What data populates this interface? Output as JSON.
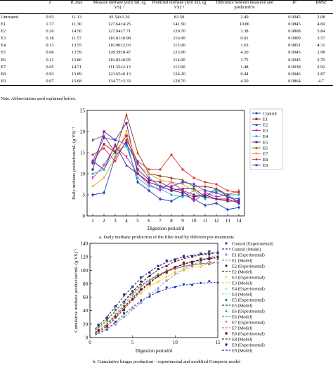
{
  "table": {
    "headers": [
      "",
      "λ",
      "R_max",
      "Measure methane yield /mL·(g VS)⁻¹",
      "Predicted methane yield /mL·(g VS)⁻¹",
      "Difference between measured and predicted/%",
      "R²",
      "RMSE"
    ],
    "rows": [
      [
        "Untreated",
        "0.93",
        "11.13",
        "81.54±1.26",
        "83.50",
        "2.40",
        "0.9945",
        "2.08"
      ],
      [
        "E1",
        "1.37",
        "11.30",
        "127.64±4.25",
        "141.50",
        "10.86",
        "0.9845",
        "4.69"
      ],
      [
        "E2",
        "0.26",
        "14.56",
        "127.94±7.71",
        "129.70",
        "1.38",
        "0.9808",
        "5.84"
      ],
      [
        "E3",
        "0.18",
        "11.57",
        "116.01±0.98",
        "116.00",
        "0.01",
        "0.9909",
        "3.57"
      ],
      [
        "E4",
        "0.13",
        "13.55",
        "116.90±2.03",
        "115.00",
        "1.63",
        "0.9851",
        "4.31"
      ],
      [
        "E5",
        "0.66",
        "13.59",
        "128.39±8.47",
        "123.00",
        "4.20",
        "0.9945",
        "2.98"
      ],
      [
        "E6",
        "0.11",
        "13.86",
        "116.03±0.95",
        "114.00",
        "1.75",
        "0.9945",
        "2.70"
      ],
      [
        "E7",
        "0.65",
        "14.71",
        "111.35±2.13",
        "113.00",
        "1.48",
        "0.9938",
        "2.92"
      ],
      [
        "E8",
        "0.93",
        "13.89",
        "123.65±0.13",
        "124.20",
        "0.44",
        "0.9946",
        "2.87"
      ],
      [
        "E9",
        "0.07",
        "15.68",
        "134.77±3.33",
        "128.70",
        "4.50",
        "0.9864",
        "4.7"
      ]
    ],
    "note": "Note: Abbreviations used explained before."
  },
  "chart_data": [
    {
      "type": "line",
      "xlabel": "Digestion period/d",
      "ylabel": "Daily methane production/mL·(g VS)⁻¹",
      "caption": "a. Daily methane production of the filter mud by different pre-treatments",
      "xlim": [
        0.5,
        14.5
      ],
      "ylim": [
        0,
        25
      ],
      "xticks": [
        "1",
        "2",
        "3",
        "4",
        "5",
        "6",
        "7",
        "8",
        "9",
        "10",
        "11",
        "12",
        "13",
        "14"
      ],
      "yticks": [
        "0",
        "5",
        "10",
        "15",
        "20",
        "25"
      ],
      "legend_position": "right",
      "x": [
        1,
        2,
        3,
        4,
        5,
        6,
        7,
        8,
        9,
        10,
        11,
        12,
        13,
        14
      ],
      "series": [
        {
          "name": "Control",
          "color": "#1f3fbf",
          "values": [
            5,
            5.5,
            14,
            17.5,
            8,
            6,
            4,
            3.5,
            5,
            4,
            2.5,
            3,
            1.5,
            2
          ]
        },
        {
          "name": "E1",
          "color": "#a01818",
          "values": [
            12.5,
            17,
            15,
            19,
            11,
            8.5,
            8,
            6.5,
            6,
            5,
            4.5,
            4,
            3.5,
            3.5
          ]
        },
        {
          "name": "E2",
          "color": "#2a2a8a",
          "values": [
            13,
            11,
            17,
            12,
            10,
            8,
            7,
            6,
            6.5,
            6.5,
            4.5,
            6.5,
            4.5,
            3.5
          ]
        },
        {
          "name": "E3",
          "color": "#d81b9b",
          "values": [
            9,
            12,
            16.5,
            14,
            10,
            7.5,
            6,
            8,
            6,
            3.5,
            5.5,
            4.5,
            5,
            3
          ]
        },
        {
          "name": "E4",
          "color": "#18b8c8",
          "values": [
            10,
            11,
            15.5,
            16.5,
            9,
            7,
            6.5,
            5,
            4.5,
            6,
            4,
            6,
            5,
            5
          ]
        },
        {
          "name": "E5",
          "color": "#6a1a9a",
          "values": [
            11,
            20,
            18,
            22,
            10,
            8,
            7,
            6,
            5.5,
            4.5,
            5,
            4,
            4,
            3
          ]
        },
        {
          "name": "E6",
          "color": "#8c3a1a",
          "values": [
            18,
            19,
            15,
            24,
            15,
            10,
            9.5,
            9,
            8.5,
            7,
            7,
            6.5,
            5,
            6
          ]
        },
        {
          "name": "E7",
          "color": "#e8a020",
          "values": [
            7,
            9,
            14,
            20,
            12,
            10,
            8.5,
            8,
            7.5,
            6,
            6,
            5.5,
            4.5,
            4
          ]
        },
        {
          "name": "E8",
          "color": "#e03030",
          "values": [
            14.5,
            16,
            13,
            18,
            13,
            11,
            11,
            14.5,
            11,
            9,
            8,
            7.5,
            6,
            5.5
          ]
        },
        {
          "name": "E9",
          "color": "#3a4ae0",
          "values": [
            13,
            18.5,
            18,
            17,
            12.5,
            9,
            7,
            7,
            8,
            7.5,
            6,
            5.5,
            4.5,
            4
          ]
        }
      ]
    },
    {
      "type": "scatter",
      "xlabel": "Digestion period/d",
      "ylabel": "Cumulative methane production/mL·(g VS)⁻¹",
      "caption": "b. Cumulative biogas production – experimental and modified Gompertz model",
      "xlim": [
        0,
        15
      ],
      "ylim": [
        0,
        140
      ],
      "xticks": [
        "0",
        "5",
        "10",
        "15"
      ],
      "yticks": [
        "0",
        "20",
        "40",
        "60",
        "80",
        "100",
        "120",
        "140"
      ],
      "legend_position": "right",
      "days": [
        1,
        2,
        3,
        4,
        5,
        6,
        7,
        8,
        9,
        10,
        11,
        12,
        13,
        14,
        15
      ],
      "series": [
        {
          "name_exp": "Control (Experimental)",
          "name_model": "Control (Model)",
          "color": "#1f3fbf",
          "marker": "circle",
          "P": 83.5,
          "R": 11.13,
          "L": 0.93
        },
        {
          "name_exp": "E1 (Experimental)",
          "name_model": "E1 (Model)",
          "color": "#9aa0a8",
          "marker": "square",
          "P": 141.5,
          "R": 11.3,
          "L": 1.37
        },
        {
          "name_exp": "E2 (Experimental)",
          "name_model": "E2 (Model)",
          "color": "#5a1a1a",
          "marker": "circle",
          "P": 129.7,
          "R": 14.56,
          "L": 0.26
        },
        {
          "name_exp": "E3 (Experimental)",
          "name_model": "E3 (Model)",
          "color": "#f0d000",
          "marker": "triangle-down",
          "P": 116.0,
          "R": 11.57,
          "L": 0.18
        },
        {
          "name_exp": "E4 (Experimental)",
          "name_model": "E4 (Model)",
          "color": "#8fe0f0",
          "marker": "triangle",
          "P": 115.0,
          "R": 13.55,
          "L": 0.13
        },
        {
          "name_exp": "E5 (Experimental)",
          "name_model": "E5 (Model)",
          "color": "#1a2a6a",
          "marker": "triangle",
          "P": 123.0,
          "R": 13.59,
          "L": 0.66
        },
        {
          "name_exp": "E6 (Experimental)",
          "name_model": "E6 (Model)",
          "color": "#2aa02a",
          "marker": "triangle",
          "P": 114.0,
          "R": 13.86,
          "L": 0.11
        },
        {
          "name_exp": "E7 (Experimental)",
          "name_model": "E7 (Model)",
          "color": "#e85aa0",
          "marker": "triangle-down",
          "P": 113.0,
          "R": 14.71,
          "L": 0.65
        },
        {
          "name_exp": "E8 (Experimental)",
          "name_model": "E8 (Model)",
          "color": "#7a1a1a",
          "marker": "square",
          "P": 124.2,
          "R": 13.89,
          "L": 0.93
        },
        {
          "name_exp": "E9 (Experimental)",
          "name_model": "E9 (Model)",
          "color": "#2a2a9a",
          "marker": "square",
          "P": 128.7,
          "R": 15.68,
          "L": 0.07
        }
      ]
    }
  ]
}
